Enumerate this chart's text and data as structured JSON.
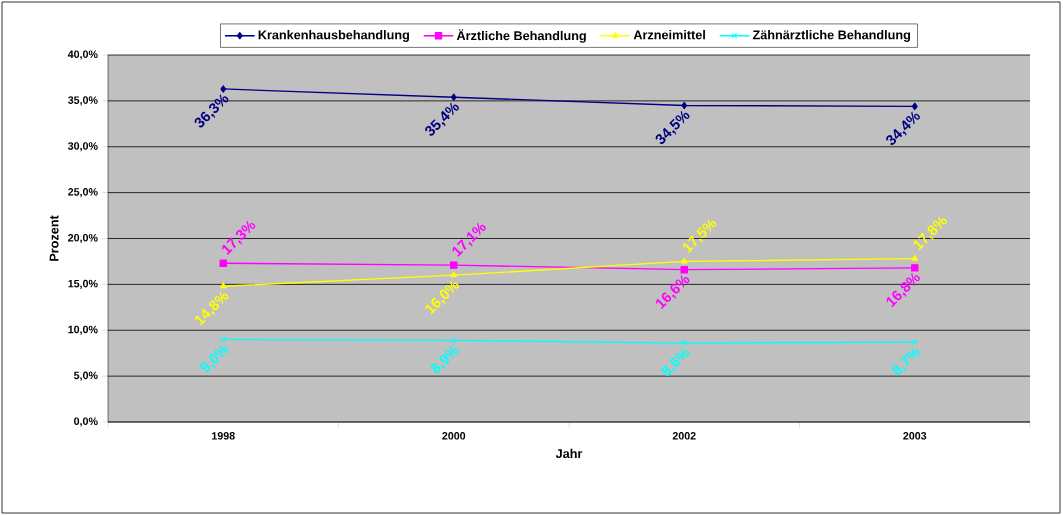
{
  "chart_data": {
    "type": "line",
    "xlabel": "Jahr",
    "ylabel": "Prozent",
    "categories": [
      "1998",
      "2000",
      "2002",
      "2003"
    ],
    "series": [
      {
        "name": "Krankenhausbehandlung",
        "color": "#000080",
        "marker": "diamond",
        "values": [
          36.3,
          35.4,
          34.5,
          34.4
        ],
        "value_labels": [
          "36,3%",
          "35,4%",
          "34,5%",
          "34,4%"
        ]
      },
      {
        "name": "Ärztliche Behandlung",
        "color": "#ff00ff",
        "marker": "square",
        "values": [
          17.3,
          17.1,
          16.6,
          16.8
        ],
        "value_labels": [
          "17,3%",
          "17,1%",
          "16,6%",
          "16,8%"
        ]
      },
      {
        "name": "Arzneimittel",
        "color": "#ffff00",
        "marker": "triangle",
        "values": [
          14.8,
          16.0,
          17.5,
          17.8
        ],
        "value_labels": [
          "14,8%",
          "16,0%",
          "17,5%",
          "17,8%"
        ]
      },
      {
        "name": "Zähnärztliche Behandlung",
        "color": "#00ffff",
        "marker": "cross",
        "values": [
          9.0,
          8.9,
          8.6,
          8.7
        ],
        "value_labels": [
          "9,0%",
          "8,9%",
          "8,6%",
          "8,7%"
        ]
      }
    ],
    "ylim": [
      0,
      40
    ],
    "yticks": [
      {
        "value": 0,
        "label": "0,0%"
      },
      {
        "value": 5,
        "label": "5,0%"
      },
      {
        "value": 10,
        "label": "10,0%"
      },
      {
        "value": 15,
        "label": "15,0%"
      },
      {
        "value": 20,
        "label": "20,0%"
      },
      {
        "value": 25,
        "label": "25,0%"
      },
      {
        "value": 30,
        "label": "30,0%"
      },
      {
        "value": 35,
        "label": "35,0%"
      },
      {
        "value": 40,
        "label": "40,0%"
      }
    ],
    "grid": "y",
    "legend": "top",
    "line_style": "solid"
  }
}
